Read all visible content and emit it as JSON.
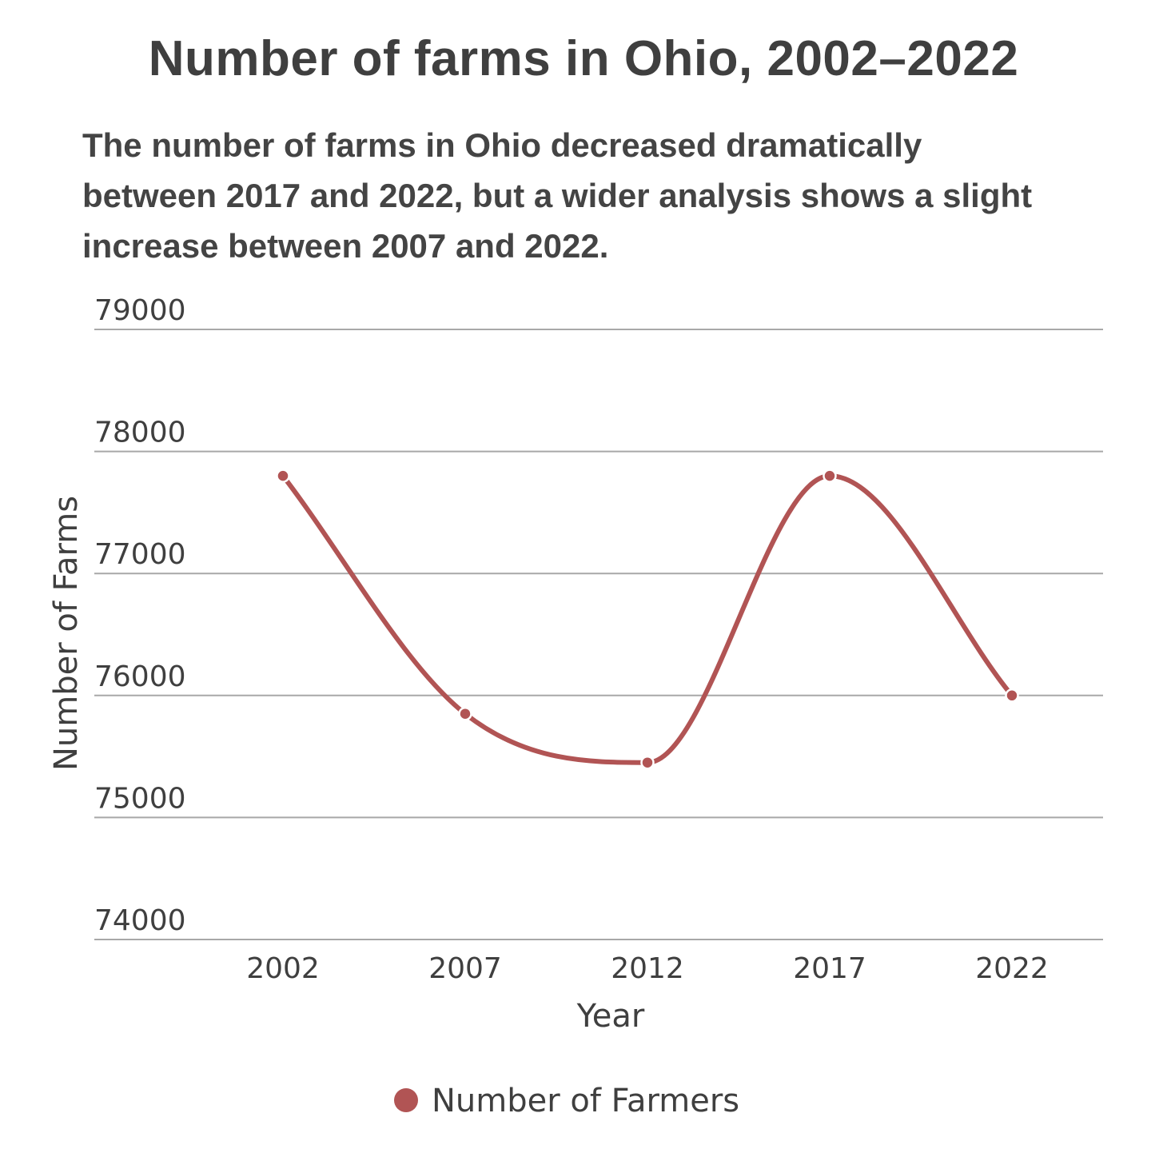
{
  "colors": {
    "series": "#b15454",
    "grid": "#a8a8a8",
    "text": "#3f3f3f"
  },
  "chart_data": {
    "type": "line",
    "title": "Number of farms in Ohio, 2002–2022",
    "subtitle": "The number of farms in Ohio decreased dramatically between 2017 and 2022, but a wider analysis shows a slight increase between 2007 and 2022.",
    "xlabel": "Year",
    "ylabel": "Number of Farms",
    "categories": [
      "2002",
      "2007",
      "2012",
      "2017",
      "2022"
    ],
    "series": [
      {
        "name": "Number of Farmers",
        "values": [
          77800,
          75850,
          75450,
          77800,
          76000
        ]
      }
    ],
    "ylim": [
      74000,
      79000
    ],
    "yticks": [
      "74000",
      "75000",
      "76000",
      "77000",
      "78000",
      "79000"
    ],
    "grid": true,
    "legend": "bottom-center",
    "smooth": true
  }
}
